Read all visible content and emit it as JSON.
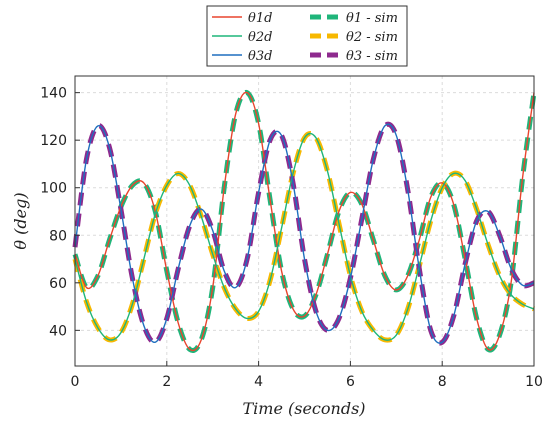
{
  "chart_data": {
    "type": "line",
    "xlabel": "Time (seconds)",
    "ylabel": "θ (deg)",
    "xlim": [
      0,
      10
    ],
    "ylim": [
      25,
      147
    ],
    "xticks": [
      0,
      2,
      4,
      6,
      8,
      10
    ],
    "yticks": [
      40,
      60,
      80,
      100,
      120,
      140
    ],
    "grid": true,
    "legend_position": "top",
    "series": [
      {
        "name": "θ1d",
        "color": "#e8452e",
        "style": "solid",
        "x": [
          0,
          0.25,
          0.5,
          0.75,
          1,
          1.25,
          1.5,
          1.75,
          2,
          2.25,
          2.5,
          2.75,
          3,
          3.25,
          3.5,
          3.75,
          4,
          4.25,
          4.5,
          4.75,
          5,
          5.25,
          5.5,
          5.75,
          6,
          6.25,
          6.5,
          6.75,
          7,
          7.25,
          7.5,
          7.75,
          8,
          8.25,
          8.5,
          8.75,
          9,
          9.25,
          9.5,
          9.75,
          10
        ],
        "y": [
          72,
          58,
          63,
          78,
          92,
          101,
          102,
          90,
          65,
          43,
          32,
          36,
          58,
          100,
          131,
          140,
          127,
          95,
          65,
          49,
          46,
          55,
          72,
          90,
          98,
          93,
          78,
          63,
          57,
          63,
          78,
          96,
          102,
          93,
          70,
          45,
          32,
          38,
          60,
          104,
          140
        ]
      },
      {
        "name": "θ2d",
        "color": "#1fb57a",
        "style": "solid",
        "x": [
          0,
          0.25,
          0.5,
          0.75,
          1,
          1.25,
          1.5,
          1.75,
          2,
          2.25,
          2.5,
          2.75,
          3,
          3.25,
          3.5,
          3.75,
          4,
          4.25,
          4.5,
          4.75,
          5,
          5.25,
          5.5,
          5.75,
          6,
          6.25,
          6.5,
          6.75,
          7,
          7.25,
          7.5,
          7.75,
          8,
          8.25,
          8.5,
          8.75,
          9,
          9.25,
          9.5,
          9.75,
          10
        ],
        "y": [
          70,
          52,
          41,
          36,
          39,
          51,
          70,
          89,
          101,
          106,
          101,
          88,
          72,
          58,
          49,
          45,
          48,
          61,
          83,
          106,
          121,
          121,
          107,
          85,
          63,
          48,
          40,
          36,
          38,
          49,
          67,
          86,
          100,
          106,
          103,
          91,
          76,
          63,
          55,
          51,
          49
        ]
      },
      {
        "name": "θ3d",
        "color": "#1f6fbf",
        "style": "solid",
        "x": [
          0,
          0.25,
          0.5,
          0.75,
          1,
          1.25,
          1.5,
          1.75,
          2,
          2.25,
          2.5,
          2.75,
          3,
          3.25,
          3.5,
          3.75,
          4,
          4.25,
          4.5,
          4.75,
          5,
          5.25,
          5.5,
          5.75,
          6,
          6.25,
          6.5,
          6.75,
          7,
          7.25,
          7.5,
          7.75,
          8,
          8.25,
          8.5,
          8.75,
          9,
          9.25,
          9.5,
          9.75,
          10
        ],
        "y": [
          75,
          112,
          126,
          117,
          91,
          62,
          42,
          35,
          45,
          66,
          84,
          91,
          82,
          65,
          58,
          70,
          98,
          120,
          122,
          102,
          70,
          48,
          40,
          45,
          62,
          87,
          112,
          126,
          122,
          99,
          66,
          40,
          35,
          46,
          68,
          86,
          90,
          80,
          66,
          59,
          60
        ]
      },
      {
        "name": "θ1 - sim",
        "color": "#1fb57a",
        "style": "dashed",
        "x": [
          0,
          0.25,
          0.5,
          0.75,
          1,
          1.25,
          1.5,
          1.75,
          2,
          2.25,
          2.5,
          2.75,
          3,
          3.25,
          3.5,
          3.75,
          4,
          4.25,
          4.5,
          4.75,
          5,
          5.25,
          5.5,
          5.75,
          6,
          6.25,
          6.5,
          6.75,
          7,
          7.25,
          7.5,
          7.75,
          8,
          8.25,
          8.5,
          8.75,
          9,
          9.25,
          9.5,
          9.75,
          10
        ],
        "y": [
          72,
          58,
          63,
          78,
          92,
          101,
          102,
          90,
          65,
          43,
          32,
          36,
          58,
          100,
          131,
          140,
          127,
          95,
          65,
          49,
          46,
          55,
          72,
          90,
          98,
          93,
          78,
          63,
          57,
          63,
          78,
          96,
          102,
          93,
          70,
          45,
          32,
          38,
          60,
          104,
          140
        ]
      },
      {
        "name": "θ2 - sim",
        "color": "#f7b800",
        "style": "dashed",
        "x": [
          0,
          0.25,
          0.5,
          0.75,
          1,
          1.25,
          1.5,
          1.75,
          2,
          2.25,
          2.5,
          2.75,
          3,
          3.25,
          3.5,
          3.75,
          4,
          4.25,
          4.5,
          4.75,
          5,
          5.25,
          5.5,
          5.75,
          6,
          6.25,
          6.5,
          6.75,
          7,
          7.25,
          7.5,
          7.75,
          8,
          8.25,
          8.5,
          8.75,
          9,
          9.25,
          9.5,
          9.75,
          10
        ],
        "y": [
          70,
          52,
          41,
          36,
          39,
          51,
          70,
          89,
          101,
          106,
          101,
          88,
          72,
          58,
          49,
          45,
          48,
          61,
          83,
          106,
          121,
          121,
          107,
          85,
          63,
          48,
          40,
          36,
          38,
          49,
          67,
          86,
          100,
          106,
          103,
          91,
          76,
          63,
          55,
          51,
          49
        ]
      },
      {
        "name": "θ3 - sim",
        "color": "#8e2a8e",
        "style": "dashed",
        "x": [
          0,
          0.25,
          0.5,
          0.75,
          1,
          1.25,
          1.5,
          1.75,
          2,
          2.25,
          2.5,
          2.75,
          3,
          3.25,
          3.5,
          3.75,
          4,
          4.25,
          4.5,
          4.75,
          5,
          5.25,
          5.5,
          5.75,
          6,
          6.25,
          6.5,
          6.75,
          7,
          7.25,
          7.5,
          7.75,
          8,
          8.25,
          8.5,
          8.75,
          9,
          9.25,
          9.5,
          9.75,
          10
        ],
        "y": [
          75,
          112,
          126,
          117,
          91,
          62,
          42,
          35,
          45,
          66,
          84,
          91,
          82,
          65,
          58,
          70,
          98,
          120,
          122,
          102,
          70,
          48,
          40,
          45,
          62,
          87,
          112,
          126,
          122,
          99,
          66,
          40,
          35,
          46,
          68,
          86,
          90,
          80,
          66,
          59,
          60
        ]
      }
    ]
  }
}
